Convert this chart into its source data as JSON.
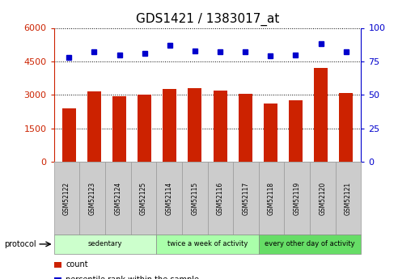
{
  "title": "GDS1421 / 1383017_at",
  "samples": [
    "GSM52122",
    "GSM52123",
    "GSM52124",
    "GSM52125",
    "GSM52114",
    "GSM52115",
    "GSM52116",
    "GSM52117",
    "GSM52118",
    "GSM52119",
    "GSM52120",
    "GSM52121"
  ],
  "counts": [
    2400,
    3150,
    2950,
    3000,
    3250,
    3300,
    3200,
    3050,
    2600,
    2750,
    4200,
    3100
  ],
  "percentile_ranks": [
    78,
    82,
    80,
    81,
    87,
    83,
    82,
    82,
    79,
    80,
    88,
    82
  ],
  "ylim_left": [
    0,
    6000
  ],
  "ylim_right": [
    0,
    100
  ],
  "yticks_left": [
    0,
    1500,
    3000,
    4500,
    6000
  ],
  "yticks_right": [
    0,
    25,
    50,
    75,
    100
  ],
  "groups": [
    {
      "label": "sedentary",
      "start": 0,
      "end": 4
    },
    {
      "label": "twice a week of activity",
      "start": 4,
      "end": 8
    },
    {
      "label": "every other day of activity",
      "start": 8,
      "end": 12
    }
  ],
  "group_colors": [
    "#ccffcc",
    "#aaffaa",
    "#66dd66"
  ],
  "bar_color": "#cc2200",
  "dot_color": "#0000cc",
  "bg_color": "#ffffff",
  "cell_bg": "#cccccc",
  "legend_count_color": "#cc2200",
  "legend_pct_color": "#0000cc"
}
